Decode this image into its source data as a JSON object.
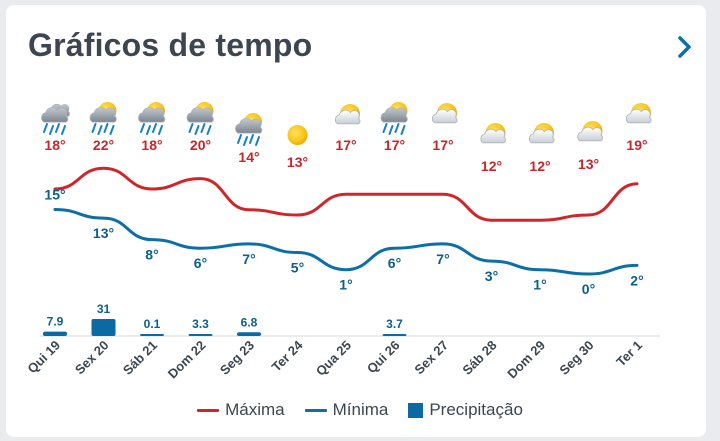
{
  "title": "Gráficos de tempo",
  "colors": {
    "max": "#d0262a",
    "min": "#0c6fa5",
    "precip": "#0b6aa3",
    "max_label": "#c8262a",
    "min_label": "#0c5f8c",
    "axis": "#d6d9dd"
  },
  "chart_data": {
    "type": "line",
    "categories": [
      "Qui 19",
      "Sex 20",
      "Sáb 21",
      "Dom 22",
      "Seg 23",
      "Ter 24",
      "Qua 25",
      "Qui 26",
      "Sex 27",
      "Sáb 28",
      "Dom 29",
      "Seg 30",
      "Ter 1"
    ],
    "icons": [
      "rain-cloud-icon",
      "rain-sun-cloud-icon",
      "rain-sun-cloud-icon",
      "rain-sun-cloud-icon",
      "rain-sun-cloud-icon",
      "sun-icon",
      "sun-cloud-icon",
      "rain-sun-cloud-icon",
      "sun-cloud-icon",
      "sun-cloud-icon",
      "sun-cloud-icon",
      "sun-cloud-icon",
      "sun-cloud-icon"
    ],
    "series": [
      {
        "name": "Máxima",
        "values": [
          18,
          22,
          18,
          20,
          14,
          13,
          17,
          17,
          17,
          12,
          12,
          13,
          19
        ]
      },
      {
        "name": "Mínima",
        "values": [
          15,
          13,
          8,
          6,
          7,
          5,
          1,
          6,
          7,
          3,
          1,
          0,
          2
        ]
      },
      {
        "name": "Precipitação",
        "values": [
          7.9,
          31,
          0.1,
          3.3,
          6.8,
          0,
          0,
          3.7,
          0,
          0,
          0,
          0,
          0
        ]
      }
    ],
    "precip_labels": [
      "7.9",
      "31",
      "0.1",
      "3.3",
      "6.8",
      "",
      "",
      "3.7",
      "",
      "",
      "",
      "",
      ""
    ],
    "unit": "°",
    "legend_position": "bottom"
  },
  "legend": [
    {
      "label": "Máxima",
      "kind": "line",
      "color": "#d0262a"
    },
    {
      "label": "Mínima",
      "kind": "line",
      "color": "#0c6fa5"
    },
    {
      "label": "Precipitação",
      "kind": "box",
      "color": "#0b6aa3"
    }
  ]
}
